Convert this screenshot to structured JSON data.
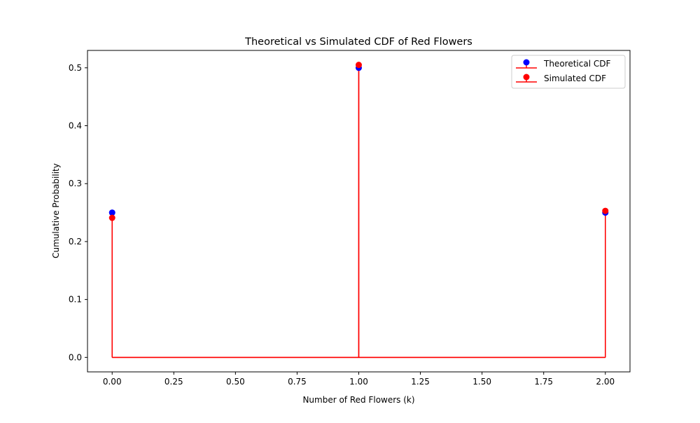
{
  "chart_data": {
    "type": "stem",
    "title": "Theoretical vs Simulated CDF of Red Flowers",
    "xlabel": "Number of Red Flowers (k)",
    "ylabel": "Cumulative Probability",
    "xlim": [
      -0.1,
      2.1
    ],
    "ylim": [
      -0.025,
      0.53
    ],
    "xticks": [
      0.0,
      0.25,
      0.5,
      0.75,
      1.0,
      1.25,
      1.5,
      1.75,
      2.0
    ],
    "xtick_labels": [
      "0.00",
      "0.25",
      "0.50",
      "0.75",
      "1.00",
      "1.25",
      "1.50",
      "1.75",
      "2.00"
    ],
    "yticks": [
      0.0,
      0.1,
      0.2,
      0.3,
      0.4,
      0.5
    ],
    "ytick_labels": [
      "0.0",
      "0.1",
      "0.2",
      "0.3",
      "0.4",
      "0.5"
    ],
    "grid": false,
    "legend_position": "upper right",
    "series": [
      {
        "name": "Theoretical CDF",
        "marker_color": "#0000ff",
        "stem_color": "#ff0000",
        "x": [
          0,
          1,
          2
        ],
        "y": [
          0.25,
          0.5,
          0.25
        ]
      },
      {
        "name": "Simulated CDF",
        "marker_color": "#ff0000",
        "stem_color": "#ff0000",
        "x": [
          0,
          1,
          2
        ],
        "y": [
          0.241,
          0.505,
          0.253
        ]
      }
    ]
  }
}
